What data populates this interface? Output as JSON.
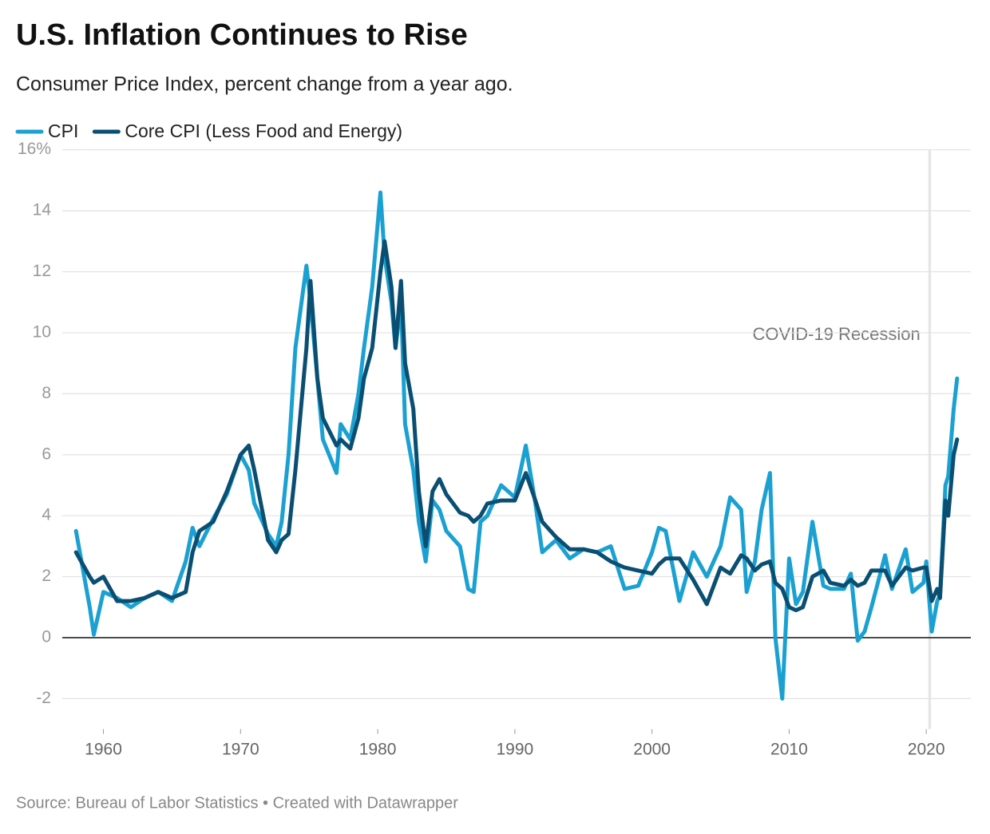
{
  "chart_data": {
    "type": "line",
    "title": "U.S. Inflation Continues to Rise",
    "subtitle": "Consumer Price Index, percent change from a year ago.",
    "source": "Source: Bureau of Labor Statistics • Created with Datawrapper",
    "x": [
      1958,
      1959,
      1959.3,
      1960,
      1961,
      1962,
      1963,
      1964,
      1965,
      1966,
      1966.5,
      1967,
      1968,
      1969,
      1970,
      1970.6,
      1971,
      1972,
      1972.6,
      1973,
      1973.5,
      1974,
      1974.8,
      1975.1,
      1975.6,
      1976,
      1977,
      1977.3,
      1978,
      1978.6,
      1979,
      1979.6,
      1980.2,
      1980.5,
      1981,
      1981.3,
      1981.7,
      1982,
      1982.6,
      1983,
      1983.5,
      1984,
      1984.5,
      1985,
      1986,
      1986.6,
      1987,
      1987.5,
      1988,
      1989,
      1990,
      1990.8,
      1991.5,
      1992,
      1993,
      1994,
      1995,
      1996,
      1997,
      1998,
      1999,
      2000,
      2000.5,
      2001,
      2002,
      2003,
      2004,
      2005,
      2005.7,
      2006.5,
      2006.9,
      2007.5,
      2008,
      2008.6,
      2009,
      2009.5,
      2010,
      2010.5,
      2011,
      2011.7,
      2012.5,
      2013,
      2014,
      2014.5,
      2015,
      2015.5,
      2016,
      2017,
      2017.5,
      2018.5,
      2019,
      2019.8,
      2020,
      2020.4,
      2020.8,
      2021,
      2021.4,
      2021.6,
      2022,
      2022.25
    ],
    "series": [
      {
        "name": "CPI",
        "color": "#1ba1d1",
        "values": [
          3.5,
          1.0,
          0.1,
          1.5,
          1.3,
          1.0,
          1.3,
          1.5,
          1.2,
          2.5,
          3.6,
          3.0,
          3.9,
          4.7,
          6.0,
          5.5,
          4.4,
          3.4,
          3.0,
          3.8,
          6.0,
          9.5,
          12.2,
          11.0,
          8.5,
          6.5,
          5.4,
          7.0,
          6.5,
          8.0,
          9.5,
          11.5,
          14.6,
          12.5,
          11.0,
          9.5,
          11.0,
          7.0,
          5.5,
          3.8,
          2.5,
          4.5,
          4.2,
          3.5,
          3.0,
          1.6,
          1.5,
          3.8,
          4.0,
          5.0,
          4.6,
          6.3,
          4.4,
          2.8,
          3.2,
          2.6,
          2.9,
          2.8,
          3.0,
          1.6,
          1.7,
          2.8,
          3.6,
          3.5,
          1.2,
          2.8,
          2.0,
          3.0,
          4.6,
          4.2,
          1.5,
          2.5,
          4.2,
          5.4,
          0.0,
          -2.0,
          2.6,
          1.1,
          1.5,
          3.8,
          1.7,
          1.6,
          1.6,
          2.1,
          -0.1,
          0.2,
          1.0,
          2.7,
          1.6,
          2.9,
          1.5,
          1.8,
          2.5,
          0.2,
          1.2,
          1.4,
          5.0,
          5.3,
          7.5,
          8.5
        ]
      },
      {
        "name": "Core CPI (Less Food and Energy)",
        "color": "#0a4f72",
        "values": [
          2.8,
          2.0,
          1.8,
          2.0,
          1.2,
          1.2,
          1.3,
          1.5,
          1.3,
          1.5,
          2.8,
          3.5,
          3.8,
          4.8,
          6.0,
          6.3,
          5.5,
          3.2,
          2.8,
          3.2,
          3.4,
          5.5,
          9.5,
          11.7,
          8.5,
          7.2,
          6.3,
          6.5,
          6.2,
          7.2,
          8.5,
          9.5,
          12.0,
          13.0,
          11.5,
          9.5,
          11.7,
          9.0,
          7.5,
          4.8,
          3.0,
          4.8,
          5.2,
          4.7,
          4.1,
          4.0,
          3.8,
          4.0,
          4.4,
          4.5,
          4.5,
          5.4,
          4.5,
          3.8,
          3.3,
          2.9,
          2.9,
          2.8,
          2.5,
          2.3,
          2.2,
          2.1,
          2.4,
          2.6,
          2.6,
          1.9,
          1.1,
          2.3,
          2.1,
          2.7,
          2.6,
          2.2,
          2.4,
          2.5,
          1.8,
          1.6,
          1.0,
          0.9,
          1.0,
          2.0,
          2.2,
          1.8,
          1.7,
          1.9,
          1.7,
          1.8,
          2.2,
          2.2,
          1.7,
          2.3,
          2.2,
          2.3,
          2.3,
          1.2,
          1.6,
          1.3,
          4.5,
          4.0,
          6.0,
          6.5
        ]
      }
    ],
    "xlim": [
      1957,
      2023.25
    ],
    "xticks": [
      1960,
      1970,
      1980,
      1990,
      2000,
      2010,
      2020
    ],
    "ylim": [
      -3,
      16
    ],
    "yticks": [
      -2,
      0,
      2,
      4,
      6,
      8,
      10,
      12,
      14,
      {
        "value": 16,
        "label": "16%"
      }
    ],
    "grid": true,
    "legend": "top-left",
    "shaded_regions": [
      {
        "label": "COVID-19 Recession",
        "xlim": [
          2020.15,
          2020.35
        ]
      }
    ]
  }
}
